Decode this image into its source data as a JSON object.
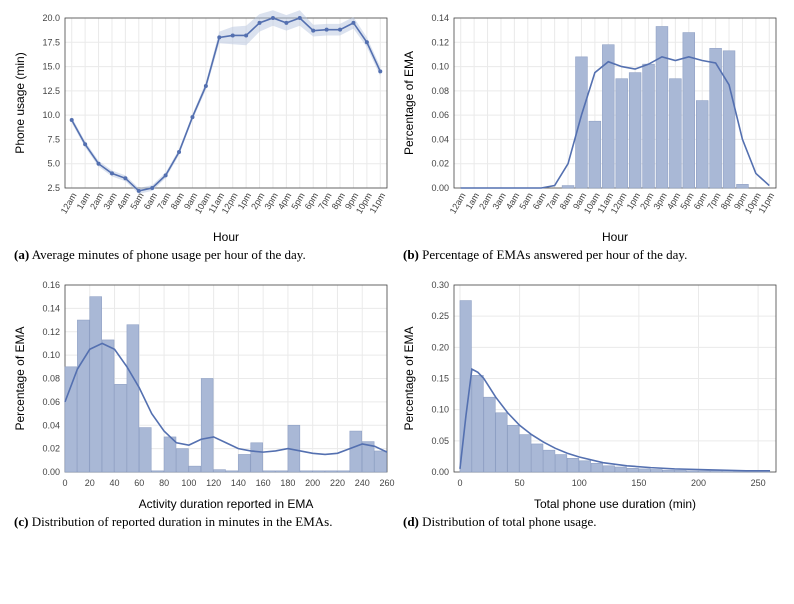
{
  "colors": {
    "bg": "#ffffff",
    "grid": "#eaeaea",
    "axis": "#444444",
    "bar_fill": "#a9b8d6",
    "bar_stroke": "#8fa0c4",
    "line": "#5470b0",
    "band": "#b8c5e0",
    "text": "#000000"
  },
  "font": {
    "axis_label_size": 12,
    "tick_size": 9,
    "caption_size": 13
  },
  "panel_a": {
    "type": "line",
    "xlabel": "Hour",
    "ylabel": "Phone usage (min)",
    "ylim": [
      2.5,
      20.0
    ],
    "yticks": [
      2.5,
      5.0,
      7.5,
      10.0,
      12.5,
      15.0,
      17.5,
      20.0
    ],
    "xticks": [
      "12am",
      "1am",
      "2am",
      "3am",
      "4am",
      "5am",
      "6am",
      "7am",
      "8am",
      "9am",
      "10am",
      "11am",
      "12pm",
      "1pm",
      "2pm",
      "3pm",
      "4pm",
      "5pm",
      "6pm",
      "7pm",
      "8pm",
      "9pm",
      "10pm",
      "11pm"
    ],
    "y": [
      9.5,
      7.0,
      5.0,
      4.0,
      3.5,
      2.2,
      2.5,
      3.8,
      6.2,
      9.8,
      13.0,
      18.0,
      18.2,
      18.2,
      19.5,
      20.0,
      19.5,
      20.0,
      18.7,
      18.8,
      18.8,
      19.5,
      17.5,
      14.5
    ],
    "band": [
      0.3,
      0.3,
      0.3,
      0.3,
      0.3,
      0.3,
      0.3,
      0.3,
      0.3,
      0.3,
      0.4,
      0.6,
      0.9,
      1.0,
      0.9,
      0.8,
      0.8,
      0.8,
      0.6,
      0.6,
      0.6,
      0.6,
      0.5,
      0.5
    ],
    "caption_label": "(a)",
    "caption_text": "Average minutes of phone usage per hour of the day."
  },
  "panel_b": {
    "type": "histogram",
    "xlabel": "Hour",
    "ylabel": "Percentage of EMA",
    "ylim": [
      0.0,
      0.14
    ],
    "yticks": [
      0.0,
      0.02,
      0.04,
      0.06,
      0.08,
      0.1,
      0.12,
      0.14
    ],
    "xticks": [
      "12am",
      "1am",
      "2am",
      "3am",
      "4am",
      "5am",
      "6am",
      "7am",
      "8am",
      "9am",
      "10am",
      "11am",
      "12pm",
      "1pm",
      "2pm",
      "3pm",
      "4pm",
      "5pm",
      "6pm",
      "7pm",
      "8pm",
      "9pm",
      "10pm",
      "11pm"
    ],
    "bars": [
      0,
      0,
      0,
      0,
      0,
      0,
      0,
      0,
      0.002,
      0.108,
      0.055,
      0.118,
      0.09,
      0.095,
      0.102,
      0.133,
      0.09,
      0.128,
      0.072,
      0.115,
      0.113,
      0.003,
      0,
      0
    ],
    "kde": [
      0,
      0,
      0,
      0,
      0,
      0,
      0,
      0.002,
      0.02,
      0.06,
      0.095,
      0.104,
      0.1,
      0.098,
      0.102,
      0.108,
      0.105,
      0.108,
      0.105,
      0.103,
      0.085,
      0.04,
      0.012,
      0.002
    ],
    "caption_label": "(b)",
    "caption_text": "Percentage of EMAs answered per hour of the day."
  },
  "panel_c": {
    "type": "histogram",
    "xlabel": "Activity duration reported in EMA",
    "ylabel": "Percentage of EMA",
    "ylim": [
      0.0,
      0.16
    ],
    "yticks": [
      0.0,
      0.02,
      0.04,
      0.06,
      0.08,
      0.1,
      0.12,
      0.14,
      0.16
    ],
    "xticks": [
      0,
      20,
      40,
      60,
      80,
      100,
      120,
      140,
      160,
      180,
      200,
      220,
      240,
      260
    ],
    "bin_width": 10,
    "bars_x": [
      0,
      10,
      20,
      30,
      40,
      50,
      60,
      70,
      80,
      90,
      100,
      110,
      120,
      130,
      140,
      150,
      160,
      170,
      180,
      190,
      200,
      210,
      220,
      230,
      240,
      250
    ],
    "bars": [
      0.09,
      0.13,
      0.15,
      0.113,
      0.075,
      0.126,
      0.038,
      0.001,
      0.03,
      0.02,
      0.005,
      0.08,
      0.002,
      0.001,
      0.015,
      0.025,
      0.001,
      0.001,
      0.04,
      0.001,
      0.001,
      0.001,
      0.001,
      0.035,
      0.026,
      0.018
    ],
    "kde_x": [
      0,
      10,
      20,
      30,
      40,
      50,
      60,
      70,
      80,
      90,
      100,
      110,
      120,
      130,
      140,
      150,
      160,
      170,
      180,
      190,
      200,
      210,
      220,
      230,
      240,
      250,
      260
    ],
    "kde": [
      0.06,
      0.088,
      0.105,
      0.11,
      0.105,
      0.09,
      0.072,
      0.05,
      0.035,
      0.025,
      0.023,
      0.028,
      0.03,
      0.025,
      0.02,
      0.018,
      0.017,
      0.018,
      0.02,
      0.018,
      0.016,
      0.015,
      0.016,
      0.02,
      0.024,
      0.022,
      0.017
    ],
    "caption_label": "(c)",
    "caption_text": "Distribution of reported duration in minutes in the EMAs."
  },
  "panel_d": {
    "type": "histogram",
    "xlabel": "Total phone use duration (min)",
    "ylabel": "Percentage of EMA",
    "ylim": [
      0.0,
      0.3
    ],
    "yticks": [
      0.0,
      0.05,
      0.1,
      0.15,
      0.2,
      0.25,
      0.3
    ],
    "xticks": [
      0,
      50,
      100,
      150,
      200,
      250
    ],
    "bin_width": 10,
    "bars_x": [
      0,
      10,
      20,
      30,
      40,
      50,
      60,
      70,
      80,
      90,
      100,
      110,
      120,
      130,
      140,
      150,
      160,
      170,
      180,
      190,
      200,
      210,
      220,
      230,
      240,
      250
    ],
    "bars": [
      0.275,
      0.155,
      0.12,
      0.095,
      0.075,
      0.06,
      0.045,
      0.035,
      0.028,
      0.022,
      0.018,
      0.014,
      0.01,
      0.008,
      0.006,
      0.005,
      0.004,
      0.003,
      0.003,
      0.002,
      0.002,
      0.002,
      0.002,
      0.001,
      0.001,
      0.001
    ],
    "kde_x": [
      0,
      5,
      10,
      15,
      20,
      25,
      30,
      40,
      50,
      60,
      70,
      80,
      90,
      100,
      120,
      140,
      160,
      180,
      200,
      220,
      240,
      260
    ],
    "kde": [
      0.005,
      0.09,
      0.165,
      0.16,
      0.15,
      0.135,
      0.12,
      0.095,
      0.075,
      0.06,
      0.048,
      0.038,
      0.03,
      0.024,
      0.015,
      0.01,
      0.007,
      0.005,
      0.004,
      0.003,
      0.002,
      0.002
    ],
    "caption_label": "(d)",
    "caption_text": "Distribution of total phone usage."
  }
}
